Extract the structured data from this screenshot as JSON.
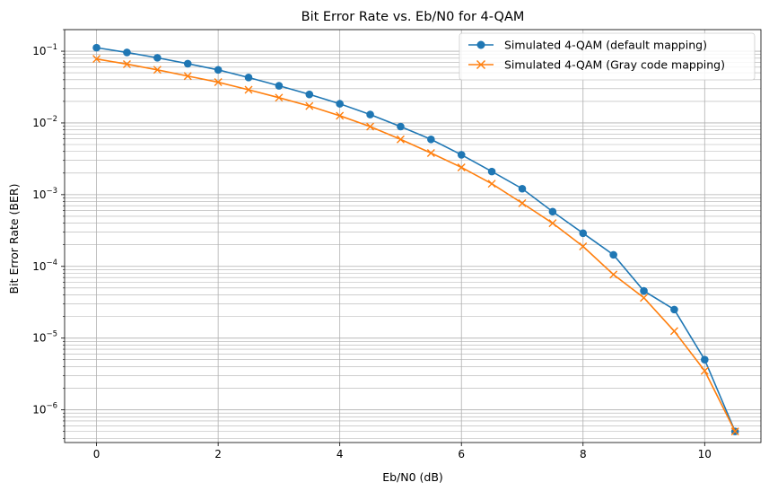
{
  "chart_data": {
    "type": "line",
    "title": "Bit Error Rate vs. Eb/N0 for 4-QAM",
    "xlabel": "Eb/N0 (dB)",
    "ylabel": "Bit Error Rate (BER)",
    "xlim": [
      -0.525,
      10.925
    ],
    "ylim": [
      3.5e-07,
      0.2
    ],
    "yscale": "log",
    "grid": "major and minor",
    "legend_position": "top-right",
    "x_ticks": [
      0,
      2,
      4,
      6,
      8,
      10
    ],
    "x_tick_labels": [
      "0",
      "2",
      "4",
      "6",
      "8",
      "10"
    ],
    "y_ticks": [
      1e-06,
      1e-05,
      0.0001,
      0.001,
      0.01,
      0.1
    ],
    "y_tick_labels": [
      {
        "base": "10",
        "exp": "−6"
      },
      {
        "base": "10",
        "exp": "−5"
      },
      {
        "base": "10",
        "exp": "−4"
      },
      {
        "base": "10",
        "exp": "−3"
      },
      {
        "base": "10",
        "exp": "−2"
      },
      {
        "base": "10",
        "exp": "−1"
      }
    ],
    "x": [
      0,
      0.5,
      1,
      1.5,
      2,
      2.5,
      3,
      3.5,
      4,
      4.5,
      5,
      5.5,
      6,
      6.5,
      7,
      7.5,
      8,
      8.5,
      9,
      9.5,
      10,
      10.5
    ],
    "series": [
      {
        "name": "Simulated 4-QAM (default mapping)",
        "color": "#1f77b4",
        "marker": "circle",
        "values": [
          0.112,
          0.096,
          0.081,
          0.067,
          0.055,
          0.043,
          0.033,
          0.025,
          0.0185,
          0.0131,
          0.0089,
          0.0059,
          0.0036,
          0.0021,
          0.00121,
          0.00058,
          0.00029,
          0.000145,
          4.55e-05,
          2.5e-05,
          5e-06,
          5e-07
        ]
      },
      {
        "name": "Simulated 4-QAM (Gray code mapping)",
        "color": "#ff7f0e",
        "marker": "x",
        "values": [
          0.078,
          0.066,
          0.055,
          0.045,
          0.037,
          0.029,
          0.0225,
          0.0172,
          0.0126,
          0.0089,
          0.0059,
          0.0038,
          0.0024,
          0.00142,
          0.00076,
          0.0004,
          0.00019,
          7.7e-05,
          3.65e-05,
          1.25e-05,
          3.5e-06,
          5e-07
        ]
      }
    ]
  }
}
